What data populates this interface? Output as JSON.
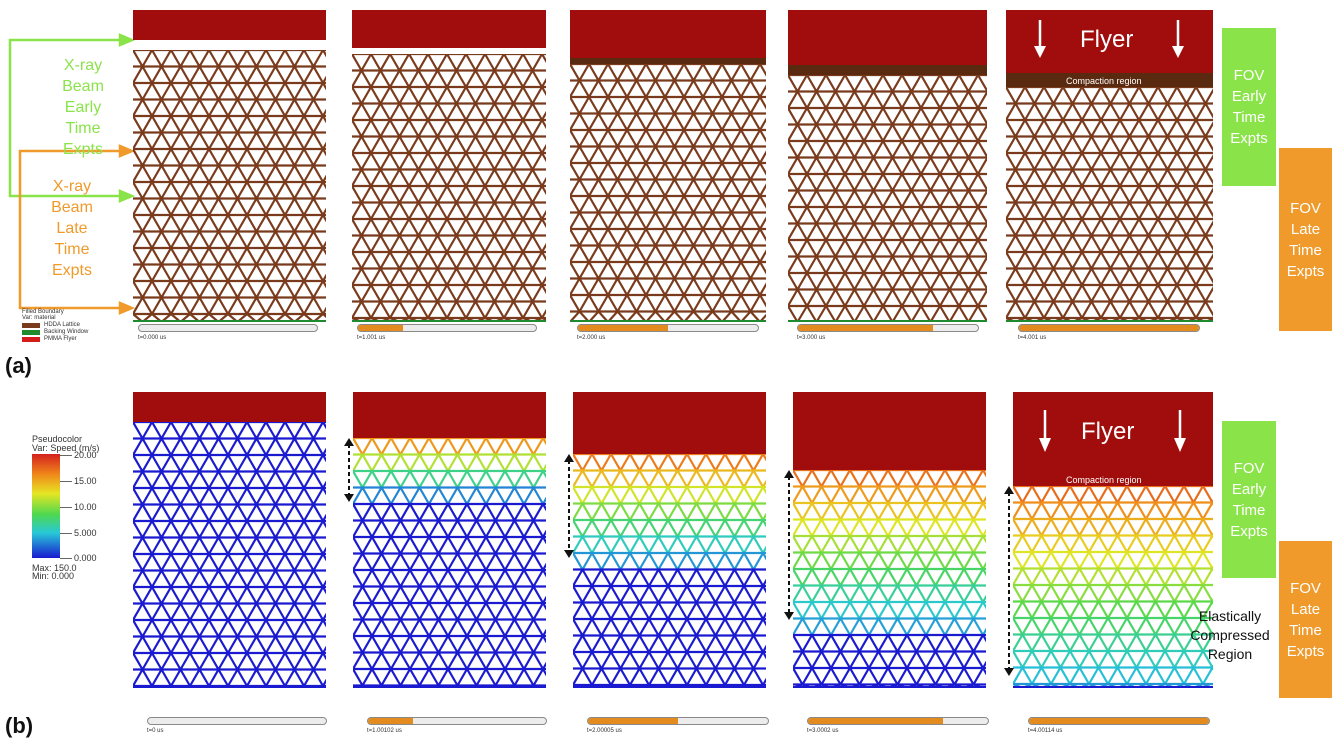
{
  "panel_labels": {
    "a": "(a)",
    "b": "(b)"
  },
  "beam": {
    "early": [
      "X-ray",
      "Beam",
      "Early",
      "Time",
      "Expts"
    ],
    "late": [
      "X-ray",
      "Beam",
      "Late",
      "Time",
      "Expts"
    ],
    "early_color": "#8be34a",
    "late_color": "#ef9a2b"
  },
  "fov": {
    "early": [
      "FOV",
      "Early",
      "Time",
      "Expts"
    ],
    "late": [
      "FOV",
      "Late",
      "Time",
      "Expts"
    ]
  },
  "flyer_label": "Flyer",
  "compaction_label": "Compaction region",
  "elastic_label": [
    "Elastically",
    "Compressed",
    "Region"
  ],
  "legend_a": {
    "title": "Filled Boundary",
    "var": "Var: material",
    "items": [
      {
        "label": "HDDA Lattice",
        "color": "#7a3b1d"
      },
      {
        "label": "Backing Window",
        "color": "#1f8a2e"
      },
      {
        "label": "PMMA Flyer",
        "color": "#d41c1c"
      }
    ]
  },
  "legend_b": {
    "title": "Pseudocolor",
    "var": "Var: Speed (m/s)",
    "ticks": [
      "20.00",
      "15.00",
      "10.00",
      "5.000",
      "0.000"
    ],
    "max": "Max:  150.0",
    "min": "Min:  0.000"
  },
  "row_a_times": [
    "t=0.000 us",
    "t=1.001 us",
    "t=2.000 us",
    "t=3.000 us",
    "t=4.001 us"
  ],
  "row_b_times": [
    "t=0 us",
    "t=1.00102 us",
    "t=2.00005 us",
    "t=3.0002 us",
    "t=4.00114 us"
  ],
  "progress": [
    0,
    0.25,
    0.5,
    0.75,
    1.0
  ],
  "colors": {
    "flyer": "#a10d0d",
    "lattice_a": "#7a3b1d",
    "speed_high": "#d42020",
    "speed_low": "#1a1ad0"
  }
}
